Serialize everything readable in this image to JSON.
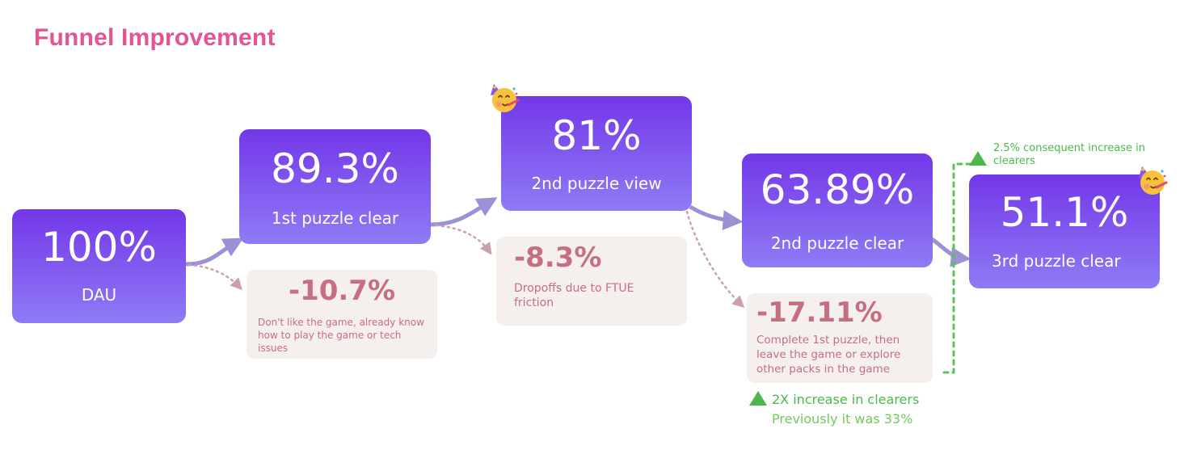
{
  "title": "Funnel Improvement",
  "colors": {
    "title": "#e25591",
    "stage_top": "#7337e8",
    "stage_bottom": "#8f7bf5",
    "connector": "#9b92d6",
    "dropoff_text": "#c56f80",
    "dropoff_bg": "#f5efee",
    "positive": "#4cb84c",
    "positive_light": "#74c85f"
  },
  "stages": [
    {
      "percent": "100%",
      "label": "DAU"
    },
    {
      "percent": "89.3%",
      "label": "1st puzzle clear"
    },
    {
      "percent": "81%",
      "label": "2nd puzzle view"
    },
    {
      "percent": "63.89%",
      "label": "2nd puzzle clear"
    },
    {
      "percent": "51.1%",
      "label": "3rd puzzle clear"
    }
  ],
  "dropoffs": [
    {
      "percent": "-10.7%",
      "text": "Don't like the game, already know how to play the game or tech issues"
    },
    {
      "percent": "-8.3%",
      "text": "Dropoffs due to FTUE friction"
    },
    {
      "percent": "-17.11%",
      "text": "Complete 1st puzzle, then leave the game or explore other packs in the game"
    }
  ],
  "improvement_main": {
    "headline": "2X increase in clearers",
    "sub": "Previously it was 33%"
  },
  "improvement_secondary": {
    "text": "2.5% consequent increase in clearers"
  },
  "icons": [
    "party-face-icon",
    "party-face-icon",
    "triangle-up-icon",
    "triangle-up-icon"
  ]
}
